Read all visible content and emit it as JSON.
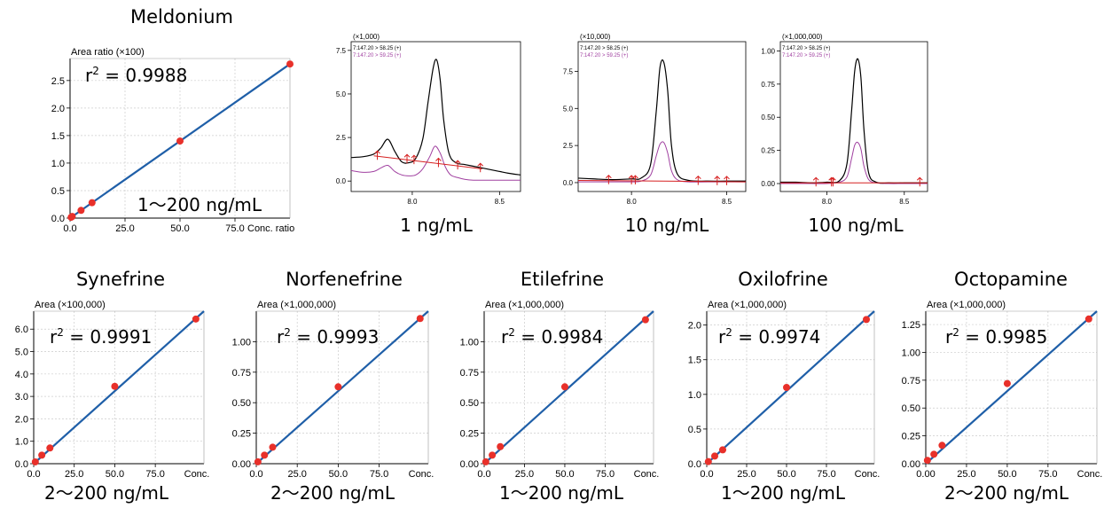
{
  "chart_data": [
    {
      "id": "meldonium-cal",
      "type": "scatter",
      "title": "Meldonium",
      "ylabel": "Area ratio (×100)",
      "xlabel": "Conc. ratio",
      "r2_base": "r",
      "r2_sup": "2",
      "r2_value": " = 0.9988",
      "range_label": "1〜200 ng/mL",
      "xlim": [
        0,
        100
      ],
      "ylim": [
        0,
        2.9
      ],
      "xticks": [
        0,
        25,
        50,
        75
      ],
      "xtick_labels": [
        "0.0",
        "25.0",
        "50.0",
        "75.0"
      ],
      "yticks": [
        0,
        0.5,
        1.0,
        1.5,
        2.0,
        2.5
      ],
      "ytick_labels": [
        "0.0",
        "0.5",
        "1.0",
        "1.5",
        "2.0",
        "2.5"
      ],
      "x": [
        0.5,
        1,
        5,
        10,
        50,
        100
      ],
      "y": [
        0.015,
        0.03,
        0.14,
        0.28,
        1.4,
        2.8
      ],
      "fit": [
        [
          0,
          0
        ],
        [
          100,
          2.8
        ]
      ],
      "grid": true
    },
    {
      "id": "chrom-1",
      "type": "line",
      "multiplier": "(×1,000)",
      "range_label": "1 ng/mL",
      "trace_labels": [
        "7:147.20 > 58.25 (+)",
        "7:147.20 > 59.25 (+)"
      ],
      "xlim": [
        7.65,
        8.62
      ],
      "ylim": [
        -0.6,
        8.0
      ],
      "xticks": [
        8.0,
        8.5
      ],
      "xtick_labels": [
        "8.0",
        "8.5"
      ],
      "yticks": [
        0,
        2.5,
        5.0,
        7.5
      ],
      "ytick_labels": [
        "0.0",
        "2.5",
        "5.0",
        "7.5"
      ],
      "series": [
        {
          "x": [
            7.65,
            7.72,
            7.78,
            7.82,
            7.86,
            7.9,
            7.94,
            7.98,
            8.02,
            8.06,
            8.09,
            8.12,
            8.14,
            8.16,
            8.18,
            8.21,
            8.25,
            8.3,
            8.35,
            8.4,
            8.45,
            8.5,
            8.55,
            8.62
          ],
          "y": [
            1.35,
            1.4,
            1.55,
            1.9,
            2.4,
            1.7,
            1.1,
            1.05,
            1.3,
            2.4,
            4.5,
            6.5,
            6.95,
            5.8,
            3.5,
            1.6,
            1.05,
            0.95,
            0.85,
            0.75,
            0.65,
            0.55,
            0.45,
            0.35
          ]
        },
        {
          "x": [
            7.65,
            7.72,
            7.78,
            7.82,
            7.86,
            7.9,
            7.94,
            7.98,
            8.02,
            8.06,
            8.1,
            8.13,
            8.16,
            8.19,
            8.22,
            8.26,
            8.3,
            8.35,
            8.4,
            8.5,
            8.62
          ],
          "y": [
            0.6,
            0.5,
            0.55,
            0.75,
            0.9,
            0.55,
            0.35,
            0.3,
            0.35,
            0.7,
            1.4,
            2.0,
            1.6,
            0.8,
            0.35,
            0.2,
            0.1,
            0.05,
            0.05,
            0.05,
            0.05
          ]
        }
      ],
      "baseline": [
        [
          7.78,
          1.45
        ],
        [
          8.4,
          0.7
        ]
      ],
      "markers": [
        7.8,
        7.97,
        8.01,
        8.15,
        8.26,
        8.39
      ]
    },
    {
      "id": "chrom-10",
      "type": "line",
      "multiplier": "(×10,000)",
      "range_label": "10 ng/mL",
      "trace_labels": [
        "7:147.20 > 58.25 (+)",
        "7:147.20 > 59.25 (+)"
      ],
      "xlim": [
        7.72,
        8.6
      ],
      "ylim": [
        -0.6,
        9.5
      ],
      "xticks": [
        8.0,
        8.5
      ],
      "xtick_labels": [
        "8.0",
        "8.5"
      ],
      "yticks": [
        0,
        2.5,
        5.0,
        7.5
      ],
      "ytick_labels": [
        "0.0",
        "2.5",
        "5.0",
        "7.5"
      ],
      "series": [
        {
          "x": [
            7.72,
            7.8,
            7.9,
            8.0,
            8.05,
            8.1,
            8.13,
            8.15,
            8.17,
            8.19,
            8.21,
            8.24,
            8.3,
            8.4,
            8.5,
            8.6
          ],
          "y": [
            0.3,
            0.25,
            0.2,
            0.25,
            0.3,
            1.2,
            4.8,
            7.8,
            8.1,
            6.2,
            2.5,
            0.6,
            0.15,
            0.1,
            0.1,
            0.1
          ]
        },
        {
          "x": [
            7.72,
            7.8,
            7.9,
            8.0,
            8.05,
            8.1,
            8.13,
            8.15,
            8.17,
            8.19,
            8.21,
            8.24,
            8.3,
            8.4,
            8.5,
            8.6
          ],
          "y": [
            0.05,
            0.05,
            0.05,
            0.05,
            0.1,
            0.5,
            1.8,
            2.6,
            2.7,
            2.0,
            0.8,
            0.2,
            0.05,
            0.05,
            0.05,
            0.05
          ]
        }
      ],
      "baseline": [
        [
          7.72,
          0.15
        ],
        [
          8.6,
          0.05
        ]
      ],
      "markers": [
        7.88,
        8.0,
        8.02,
        8.35,
        8.45,
        8.5
      ]
    },
    {
      "id": "chrom-100",
      "type": "line",
      "multiplier": "(×1,000,000)",
      "range_label": "100 ng/mL",
      "trace_labels": [
        "7:147.20 > 58.25 (+)",
        "7:147.20 > 59.25 (+)"
      ],
      "xlim": [
        7.7,
        8.65
      ],
      "ylim": [
        -0.06,
        1.07
      ],
      "xticks": [
        8.0,
        8.5
      ],
      "xtick_labels": [
        "8.0",
        "8.5"
      ],
      "yticks": [
        0,
        0.25,
        0.5,
        0.75,
        1.0
      ],
      "ytick_labels": [
        "0.00",
        "0.25",
        "0.50",
        "0.75",
        "1.00"
      ],
      "series": [
        {
          "x": [
            7.7,
            7.8,
            7.9,
            8.0,
            8.08,
            8.13,
            8.16,
            8.18,
            8.2,
            8.22,
            8.24,
            8.27,
            8.32,
            8.4,
            8.5,
            8.65
          ],
          "y": [
            0.01,
            0.01,
            0.005,
            0.01,
            0.02,
            0.15,
            0.55,
            0.85,
            0.94,
            0.8,
            0.4,
            0.08,
            0.01,
            0.005,
            0.005,
            0.005
          ]
        },
        {
          "x": [
            7.7,
            7.8,
            7.9,
            8.0,
            8.08,
            8.13,
            8.16,
            8.18,
            8.2,
            8.22,
            8.24,
            8.27,
            8.32,
            8.4,
            8.5,
            8.65
          ],
          "y": [
            0.0,
            0.0,
            0.0,
            0.0,
            0.01,
            0.05,
            0.19,
            0.29,
            0.31,
            0.26,
            0.13,
            0.03,
            0.005,
            0.0,
            0.0,
            0.0
          ]
        }
      ],
      "baseline": [
        [
          7.7,
          0.005
        ],
        [
          8.65,
          0.005
        ]
      ],
      "markers": [
        7.93,
        8.03,
        8.04,
        8.6
      ]
    },
    {
      "id": "synefrine-cal",
      "type": "scatter",
      "title": "Synefrine",
      "ylabel": "Area (×100,000)",
      "xlabel": "Conc.",
      "r2_base": "r",
      "r2_sup": "2",
      "r2_value": " = 0.9991",
      "range_label": "2〜200 ng/mL",
      "xlim": [
        0,
        105
      ],
      "ylim": [
        0,
        6.8
      ],
      "xticks": [
        0,
        25,
        50,
        75
      ],
      "xtick_labels": [
        "0.0",
        "25.0",
        "50.0",
        "75.0"
      ],
      "yticks": [
        0,
        1,
        2,
        3,
        4,
        5,
        6
      ],
      "ytick_labels": [
        "0.0",
        "1.0",
        "2.0",
        "3.0",
        "4.0",
        "5.0",
        "6.0"
      ],
      "x": [
        1,
        5,
        10,
        50,
        100
      ],
      "y": [
        0.08,
        0.38,
        0.7,
        3.45,
        6.45
      ],
      "fit": [
        [
          0,
          0
        ],
        [
          105,
          6.8
        ]
      ],
      "grid": true
    },
    {
      "id": "norfenefrine-cal",
      "type": "scatter",
      "title": "Norfenefrine",
      "ylabel": "Area (×1,000,000)",
      "xlabel": "Conc.",
      "r2_base": "r",
      "r2_sup": "2",
      "r2_value": " = 0.9993",
      "range_label": "2〜200 ng/mL",
      "xlim": [
        0,
        105
      ],
      "ylim": [
        0,
        1.25
      ],
      "xticks": [
        0,
        25,
        50,
        75
      ],
      "xtick_labels": [
        "0.0",
        "25.0",
        "50.0",
        "75.0"
      ],
      "yticks": [
        0,
        0.25,
        0.5,
        0.75,
        1.0
      ],
      "ytick_labels": [
        "0.00",
        "0.25",
        "0.50",
        "0.75",
        "1.00"
      ],
      "x": [
        1,
        5,
        10,
        50,
        100
      ],
      "y": [
        0.015,
        0.07,
        0.135,
        0.63,
        1.19
      ],
      "fit": [
        [
          0,
          0
        ],
        [
          105,
          1.25
        ]
      ],
      "grid": true
    },
    {
      "id": "etilefrine-cal",
      "type": "scatter",
      "title": "Etilefrine",
      "ylabel": "Area (×1,000,000)",
      "xlabel": "Conc.",
      "r2_base": "r",
      "r2_sup": "2",
      "r2_value": " = 0.9984",
      "range_label": "1〜200 ng/mL",
      "xlim": [
        0,
        105
      ],
      "ylim": [
        0,
        1.25
      ],
      "xticks": [
        0,
        25,
        50,
        75
      ],
      "xtick_labels": [
        "0.0",
        "25.0",
        "50.0",
        "75.0"
      ],
      "yticks": [
        0,
        0.25,
        0.5,
        0.75,
        1.0
      ],
      "ytick_labels": [
        "0.00",
        "0.25",
        "0.50",
        "0.75",
        "1.00"
      ],
      "x": [
        1,
        5,
        10,
        50,
        100
      ],
      "y": [
        0.015,
        0.07,
        0.14,
        0.63,
        1.18
      ],
      "fit": [
        [
          0,
          0
        ],
        [
          105,
          1.25
        ]
      ],
      "grid": true
    },
    {
      "id": "oxilofrine-cal",
      "type": "scatter",
      "title": "Oxilofrine",
      "ylabel": "Area (×1,000,000)",
      "xlabel": "Conc.",
      "r2_base": "r",
      "r2_sup": "2",
      "r2_value": " = 0.9974",
      "range_label": "1〜200 ng/mL",
      "xlim": [
        0,
        105
      ],
      "ylim": [
        0,
        2.2
      ],
      "xticks": [
        0,
        25,
        50,
        75
      ],
      "xtick_labels": [
        "0.0",
        "25.0",
        "50.0",
        "75.0"
      ],
      "yticks": [
        0,
        0.5,
        1.0,
        1.5,
        2.0
      ],
      "ytick_labels": [
        "0.0",
        "0.5",
        "1.0",
        "1.5",
        "2.0"
      ],
      "x": [
        1,
        5,
        10,
        50,
        100
      ],
      "y": [
        0.03,
        0.11,
        0.2,
        1.1,
        2.08
      ],
      "fit": [
        [
          0,
          0
        ],
        [
          105,
          2.2
        ]
      ],
      "grid": true
    },
    {
      "id": "octopamine-cal",
      "type": "scatter",
      "title": "Octopamine",
      "ylabel": "Area (×1,000,000)",
      "xlabel": "Conc.",
      "r2_base": "r",
      "r2_sup": "2",
      "r2_value": " = 0.9985",
      "range_label": "2〜200 ng/mL",
      "xlim": [
        0,
        105
      ],
      "ylim": [
        0,
        1.37
      ],
      "xticks": [
        0,
        25,
        50,
        75
      ],
      "xtick_labels": [
        "0.00",
        "25.0",
        "50.0",
        "75.0"
      ],
      "yticks": [
        0,
        0.25,
        0.5,
        0.75,
        1.0,
        1.25
      ],
      "ytick_labels": [
        "0.00",
        "0.25",
        "0.50",
        "0.75",
        "1.00",
        "1.25"
      ],
      "x": [
        1,
        5,
        10,
        50,
        100
      ],
      "y": [
        0.03,
        0.085,
        0.165,
        0.72,
        1.3
      ],
      "fit": [
        [
          0,
          0
        ],
        [
          105,
          1.37
        ]
      ],
      "grid": true
    }
  ],
  "colors": {
    "fit_line": "#1f5fa8",
    "point": "#e8302a",
    "trace1": "#000000",
    "trace2": "#a040a0",
    "baseline": "#d62020",
    "trace2_label": "#a040a0"
  }
}
